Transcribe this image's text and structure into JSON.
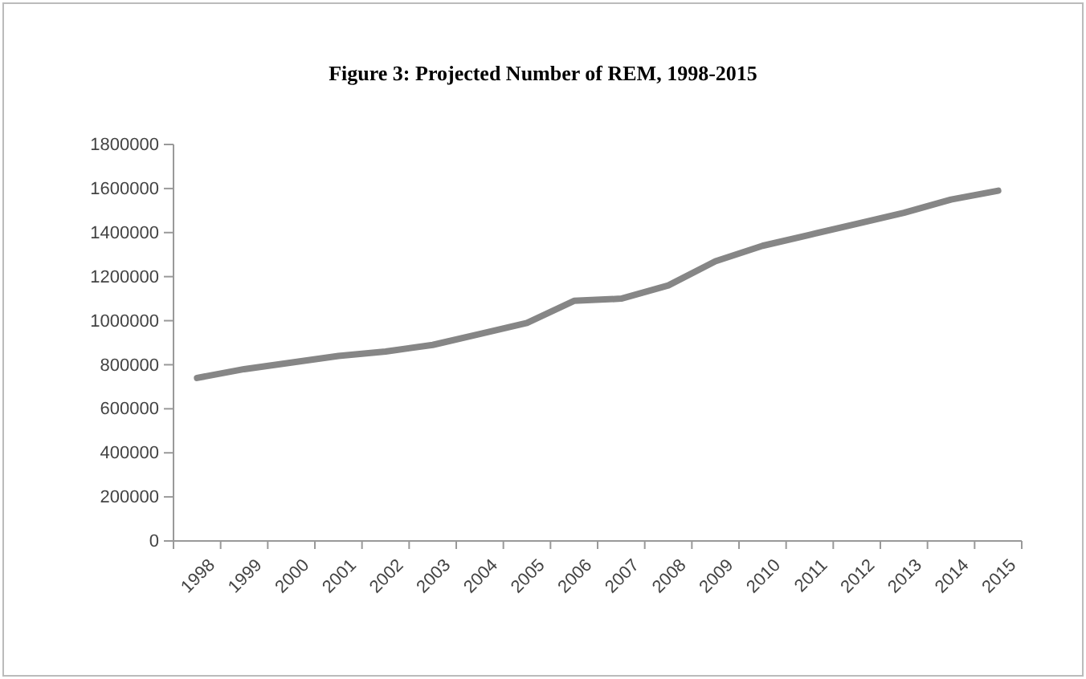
{
  "chart_data": {
    "type": "line",
    "title": "Figure 3: Projected Number of REM, 1998-2015",
    "categories": [
      "1998",
      "1999",
      "2000",
      "2001",
      "2002",
      "2003",
      "2004",
      "2005",
      "2006",
      "2007",
      "2008",
      "2009",
      "2010",
      "2011",
      "2012",
      "2013",
      "2014",
      "2015"
    ],
    "series": [
      {
        "color": "#868686",
        "values": [
          740000,
          780000,
          810000,
          840000,
          860000,
          890000,
          940000,
          990000,
          1090000,
          1100000,
          1160000,
          1270000,
          1340000,
          1390000,
          1440000,
          1490000,
          1550000,
          1590000
        ]
      }
    ],
    "ylim": [
      0,
      1800000
    ],
    "yticks": [
      0,
      200000,
      400000,
      600000,
      800000,
      1000000,
      1200000,
      1400000,
      1600000,
      1800000
    ],
    "grid": false,
    "marker": "none",
    "line_style": "solid"
  }
}
